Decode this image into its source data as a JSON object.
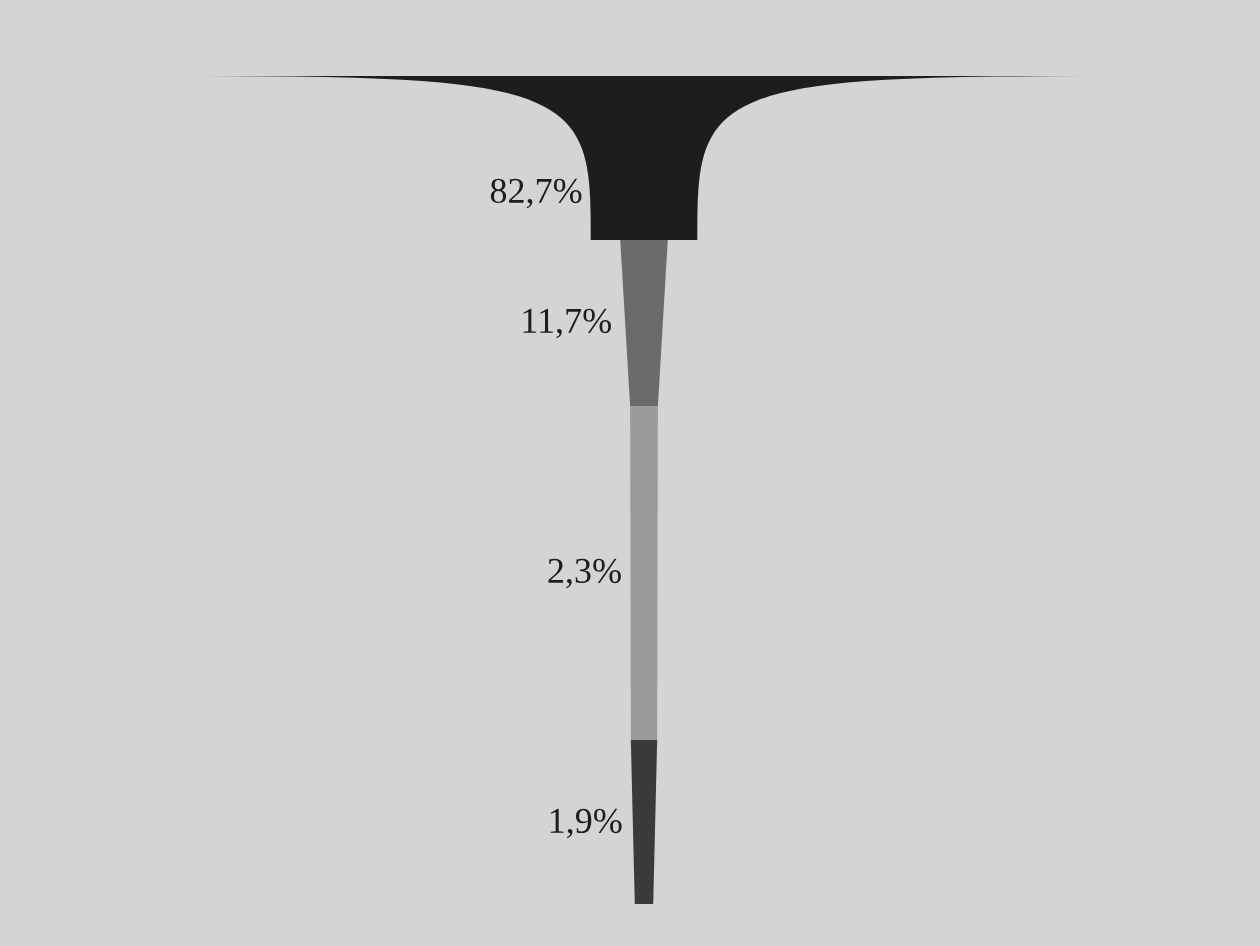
{
  "chart_data": {
    "type": "other",
    "categories": [
      null,
      null,
      null,
      null
    ],
    "values": [
      82.7,
      11.7,
      2.3,
      1.9
    ],
    "value_labels": [
      "82,7%",
      "11,7%",
      "2,3%",
      "1,9%"
    ],
    "colors": [
      "#1e1c1d",
      "#6b6b6b",
      "#9b9b9b",
      "#3a3a3a"
    ]
  }
}
